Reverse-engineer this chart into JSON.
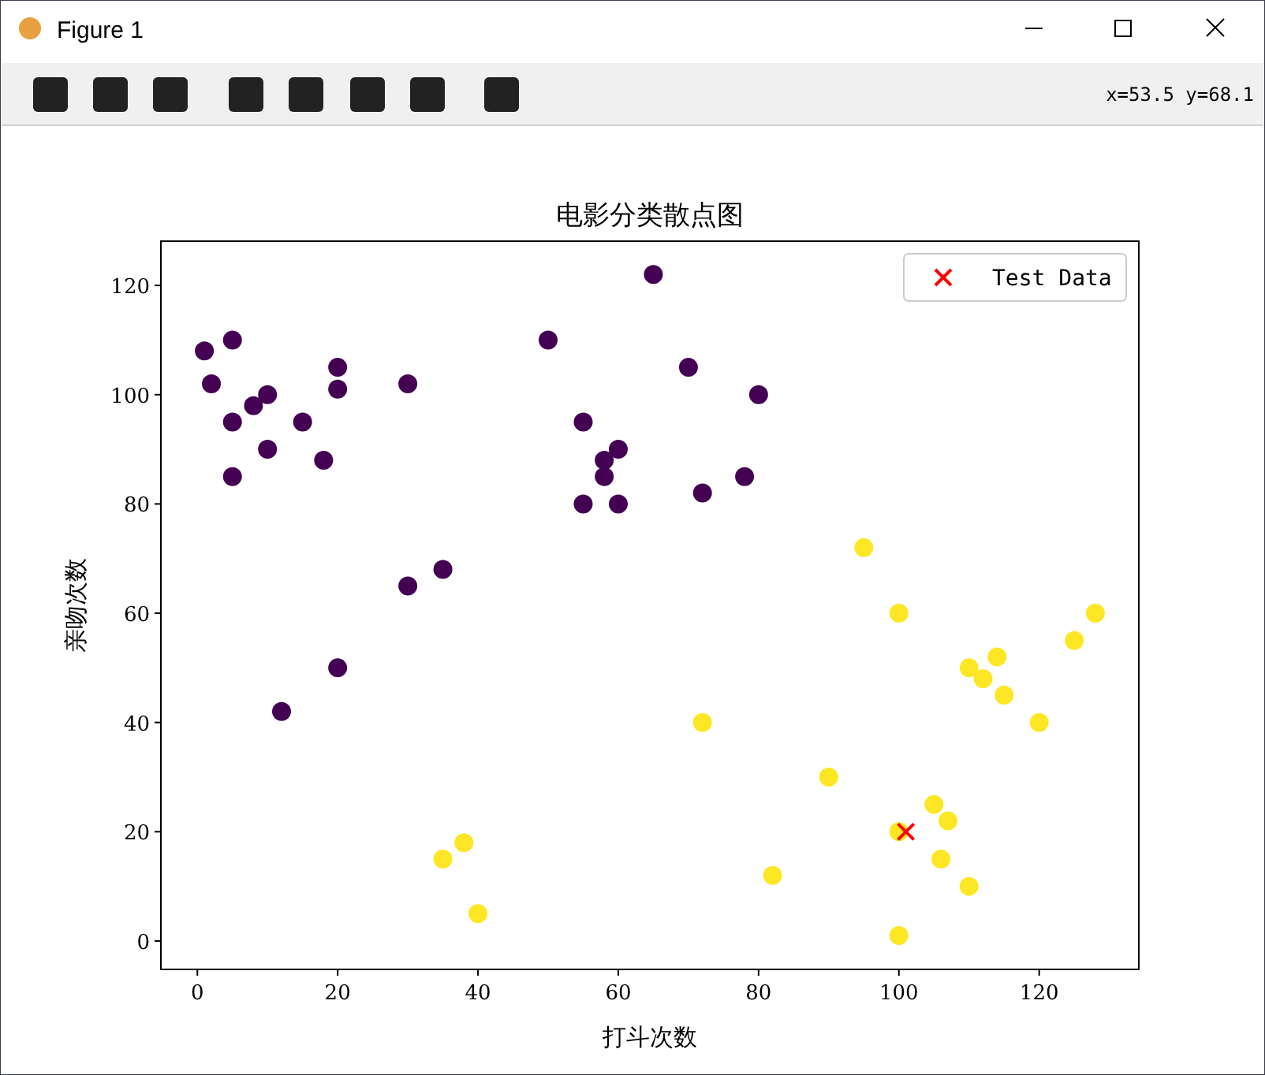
{
  "chart_data": {
    "type": "scatter",
    "title": "电影分类散点图",
    "xlabel": "打斗次数",
    "ylabel": "亲吻次数",
    "annotations": [
      "Figure 1",
      "x=53.5 y=68.1"
    ],
    "xlim": [
      -5.2,
      134.2
    ],
    "ylim": [
      -5.2,
      128.1
    ],
    "xticks": [
      0,
      20,
      40,
      60,
      80,
      100,
      120
    ],
    "yticks": [
      0,
      20,
      40,
      60,
      80,
      100,
      120
    ],
    "grid": false,
    "legend": "top right",
    "series": [
      {
        "color": "#440154",
        "marker": "circle",
        "x": [
          1,
          2,
          5,
          5,
          5,
          8,
          10,
          10,
          15,
          18,
          20,
          20,
          20,
          12,
          30,
          30,
          35,
          50,
          55,
          55,
          58,
          58,
          60,
          60,
          65,
          70,
          72,
          78,
          80
        ],
        "values": [
          108,
          102,
          110,
          95,
          85,
          98,
          100,
          90,
          95,
          88,
          105,
          101,
          50,
          42,
          102,
          65,
          68,
          110,
          95,
          80,
          88,
          85,
          90,
          80,
          122,
          105,
          82,
          85,
          100
        ]
      },
      {
        "color": "#fde725",
        "marker": "circle",
        "x": [
          35,
          38,
          40,
          72,
          82,
          90,
          95,
          100,
          100,
          100,
          105,
          106,
          107,
          110,
          110,
          112,
          114,
          115,
          120,
          125,
          128
        ],
        "values": [
          15,
          18,
          5,
          40,
          12,
          30,
          72,
          60,
          20,
          1,
          25,
          15,
          22,
          50,
          10,
          48,
          52,
          45,
          40,
          55,
          60
        ]
      },
      {
        "name": "Test Data",
        "color": "#ff0000",
        "marker": "cross",
        "x": [
          101
        ],
        "values": [
          20
        ]
      }
    ]
  }
}
